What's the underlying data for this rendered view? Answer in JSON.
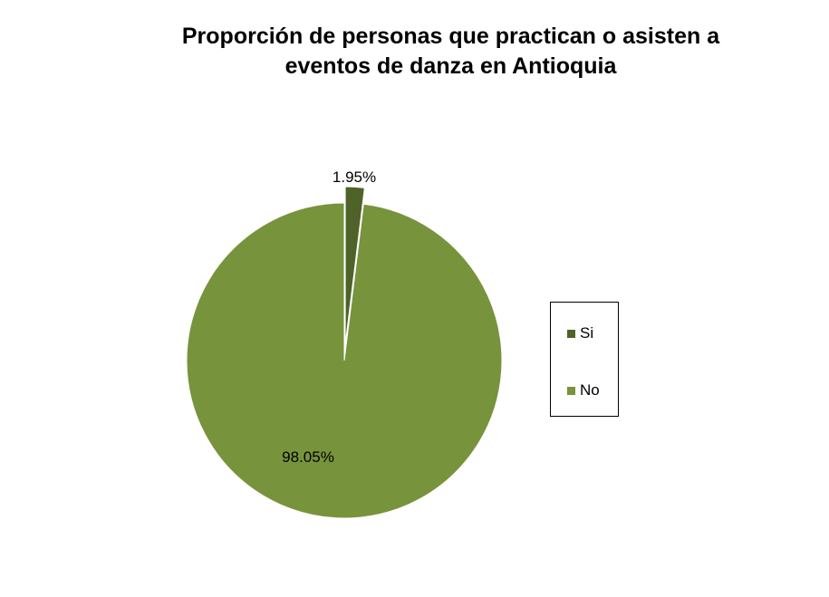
{
  "chart_data": {
    "type": "pie",
    "title_lines": [
      "Proporción de personas que practican o asisten a",
      "eventos de danza en Antioquia"
    ],
    "categories": [
      "Si",
      "No"
    ],
    "values": [
      1.95,
      98.05
    ],
    "data_labels": [
      "1.95%",
      "98.05%"
    ],
    "colors": [
      "#4F6228",
      "#77933C"
    ],
    "exploded_slice": "Si",
    "legend": {
      "placement": "right",
      "entries": [
        "Si",
        "No"
      ]
    }
  }
}
